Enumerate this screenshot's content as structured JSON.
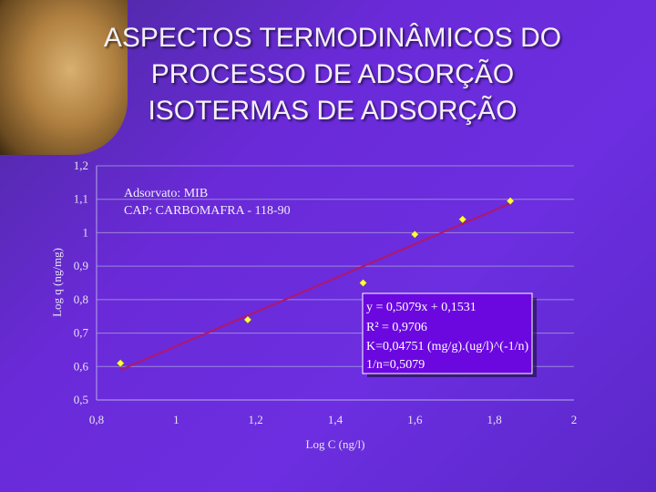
{
  "slide": {
    "title_lines": [
      "ASPECTOS TERMODINÂMICOS DO",
      "PROCESSO DE ADSORÇÃO",
      "ISOTERMAS DE ADSORÇÃO"
    ]
  },
  "chart_data": {
    "type": "scatter",
    "xlabel": "Log C (ng/l)",
    "ylabel": "Log q (ng/mg)",
    "xlim": [
      0.8,
      2
    ],
    "ylim": [
      0.5,
      1.2
    ],
    "x_ticks": [
      "0,8",
      "1",
      "1,2",
      "1,4",
      "1,6",
      "1,8",
      "2"
    ],
    "y_ticks": [
      "0,5",
      "0,6",
      "0,7",
      "0,8",
      "0,9",
      "1",
      "1,1",
      "1,2"
    ],
    "grid": true,
    "annotations": [
      "Adsorvato: MIB",
      "CAP: CARBOMAFRA - 118-90"
    ],
    "equation_box": {
      "lines": [
        "y = 0,5079x + 0,1531",
        "R² = 0,9706",
        "K=0,04751 (mg/g).(ug/l)^(-1/n)",
        "1/n=0,5079"
      ]
    },
    "points": {
      "x": [
        0.86,
        1.18,
        1.47,
        1.6,
        1.72,
        1.84
      ],
      "y": [
        0.61,
        0.74,
        0.85,
        0.995,
        1.04,
        1.095
      ]
    },
    "trendline": {
      "slope": 0.5079,
      "intercept": 0.1531
    },
    "colors": {
      "marker": "#ffff40",
      "trendline": "#b0186a",
      "box": "#6b08e0"
    }
  }
}
